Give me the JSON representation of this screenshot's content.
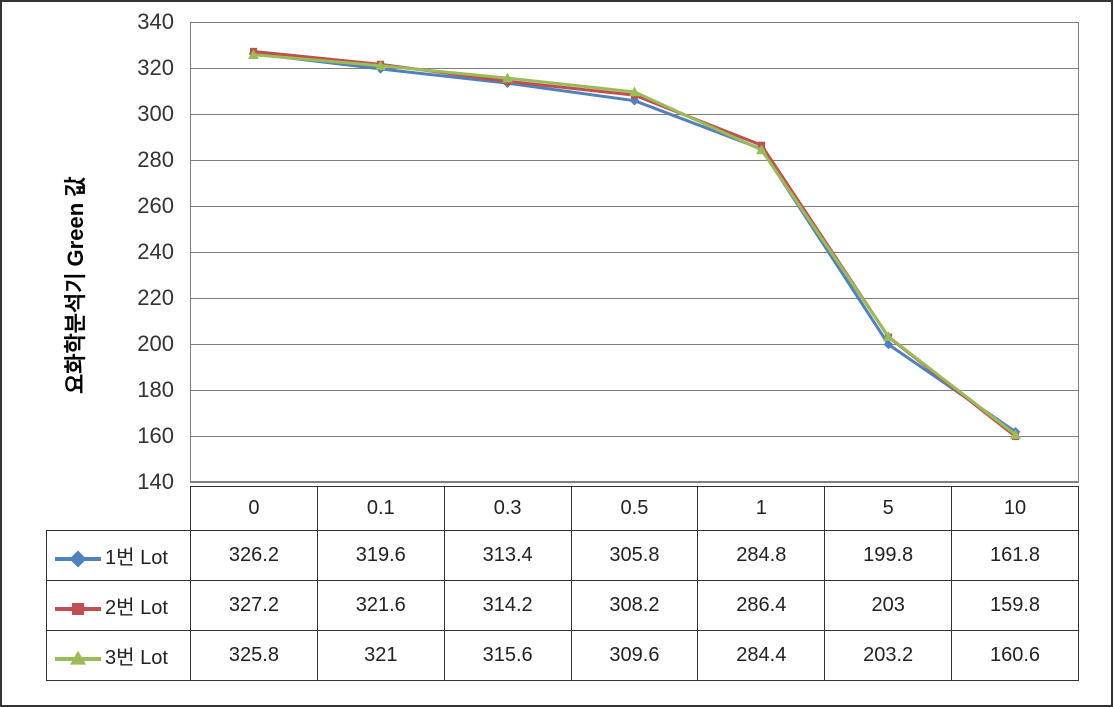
{
  "chart": {
    "type": "line",
    "y_axis_label": "요화학분석기 Green 값",
    "y_axis_fontsize": 22,
    "y_axis_fontweight": "bold",
    "ylim": [
      140,
      340
    ],
    "ytick_step": 20,
    "yticks": [
      140,
      160,
      180,
      200,
      220,
      240,
      260,
      280,
      300,
      320,
      340
    ],
    "categories": [
      "0",
      "0.1",
      "0.3",
      "0.5",
      "1",
      "5",
      "10"
    ],
    "grid_color": "#7f7f7f",
    "background_color": "#ffffff",
    "line_width": 3,
    "marker_size": 12,
    "series": [
      {
        "name": "1번 Lot",
        "color": "#4f81bd",
        "marker": "diamond",
        "values": [
          326.2,
          319.6,
          313.4,
          305.8,
          284.8,
          199.8,
          161.8
        ]
      },
      {
        "name": "2번 Lot",
        "color": "#c0504d",
        "marker": "square",
        "values": [
          327.2,
          321.6,
          314.2,
          308.2,
          286.4,
          203,
          159.8
        ]
      },
      {
        "name": "3번 Lot",
        "color": "#9bbb59",
        "marker": "triangle",
        "values": [
          325.8,
          321,
          315.6,
          309.6,
          284.4,
          203.2,
          160.6
        ]
      }
    ]
  },
  "text_color": "#333333",
  "border_color": "#333333"
}
